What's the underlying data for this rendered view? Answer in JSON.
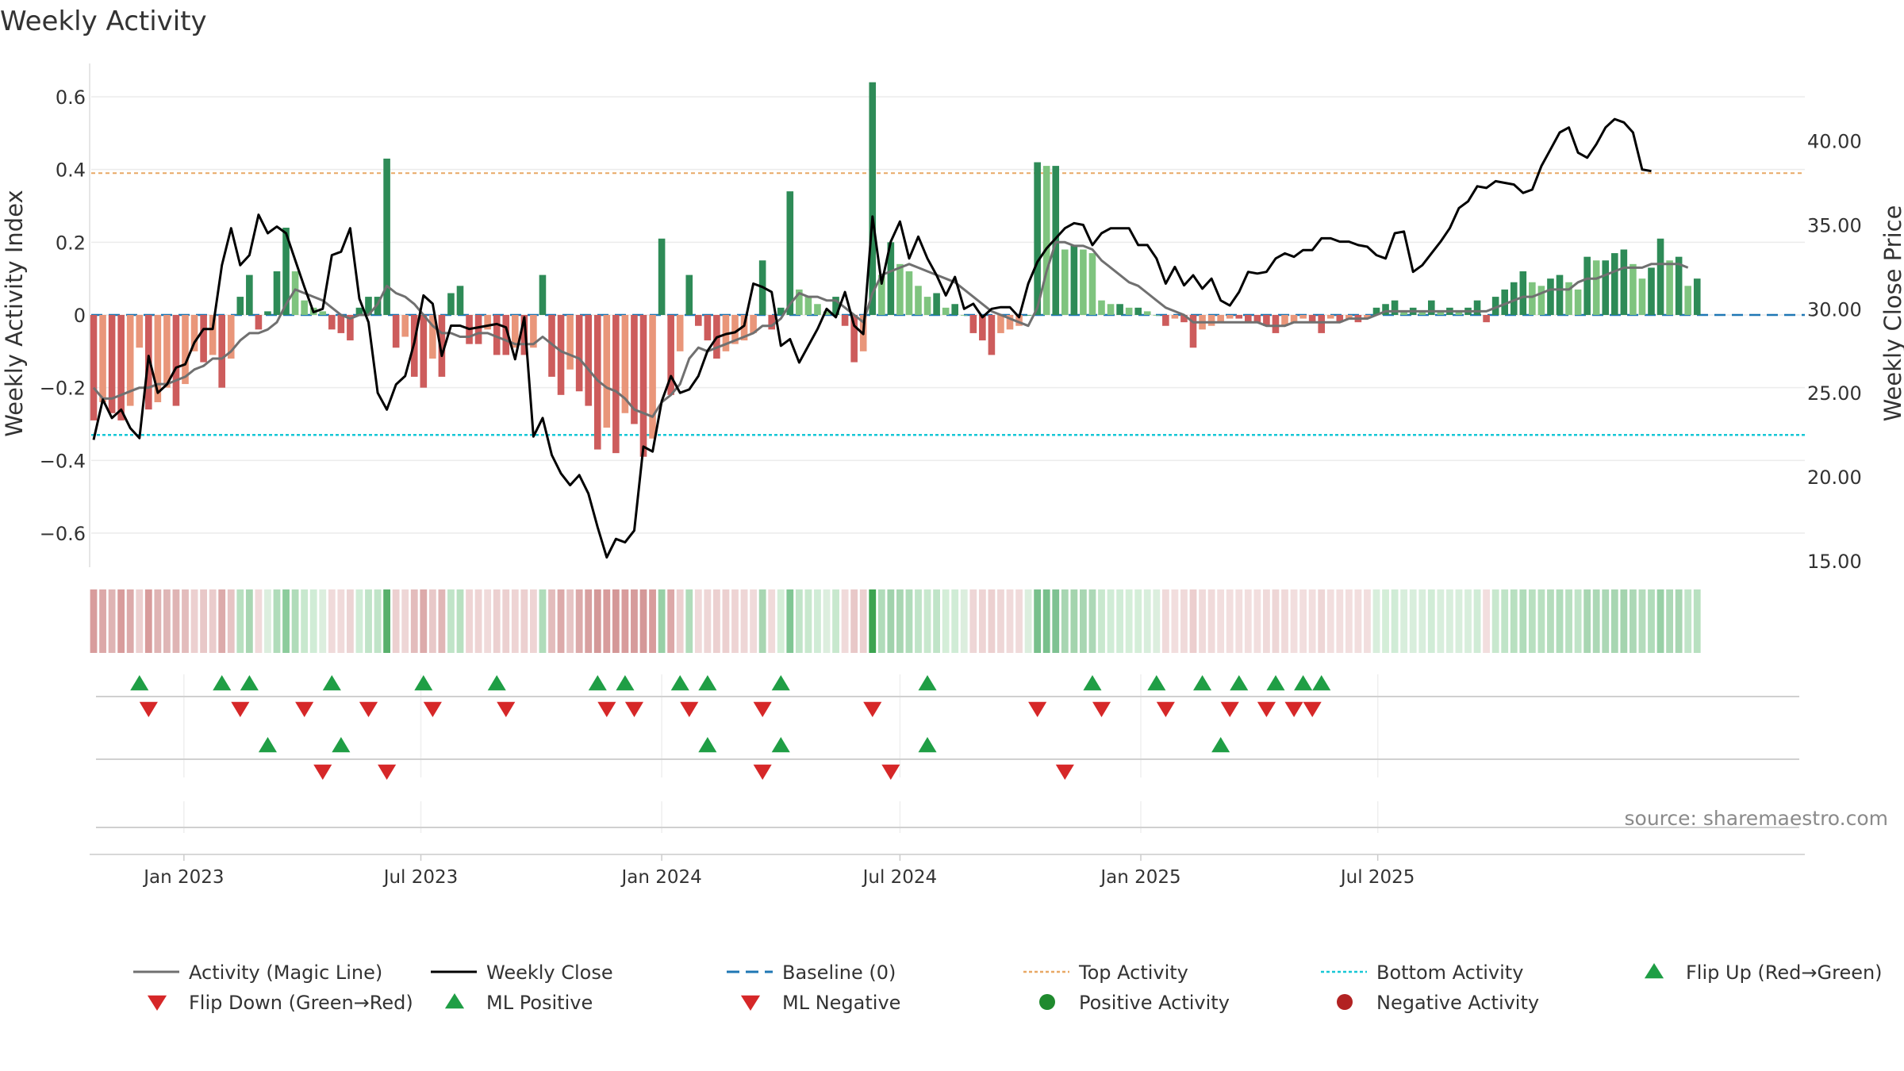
{
  "chart_data": {
    "type": "bar",
    "title": "Weekly Activity",
    "ylabel": "Weekly Activity Index",
    "y2label": "Weekly Close Price",
    "source": "source: sharemaestro.com",
    "ylim": [
      -0.7,
      0.7
    ],
    "y2lim": [
      12.8,
      44.0
    ],
    "yticks": [
      {
        "v": 0.6,
        "label": "0.6"
      },
      {
        "v": 0.4,
        "label": "0.4"
      },
      {
        "v": 0.2,
        "label": "0.2"
      },
      {
        "v": 0,
        "label": "0"
      },
      {
        "v": -0.2,
        "label": "−0.2"
      },
      {
        "v": -0.4,
        "label": "−0.4"
      },
      {
        "v": -0.6,
        "label": "−0.6"
      }
    ],
    "y2ticks": [
      {
        "v": 40,
        "label": "40.00"
      },
      {
        "v": 35,
        "label": "35.00"
      },
      {
        "v": 30,
        "label": "30.00"
      },
      {
        "v": 25,
        "label": "25.00"
      },
      {
        "v": 20,
        "label": "20.00"
      },
      {
        "v": 15,
        "label": "15.00"
      }
    ],
    "xticks": [
      {
        "date": "2023-01-01",
        "label": "Jan 2023"
      },
      {
        "date": "2023-07-01",
        "label": "Jul 2023"
      },
      {
        "date": "2024-01-01",
        "label": "Jan 2024"
      },
      {
        "date": "2024-07-01",
        "label": "Jul 2024"
      },
      {
        "date": "2025-01-01",
        "label": "Jan 2025"
      },
      {
        "date": "2025-07-01",
        "label": "Jul 2025"
      }
    ],
    "start_date": "2022-10-24",
    "top_activity": 0.39,
    "bottom_activity": -0.33,
    "activity": [
      -0.29,
      -0.24,
      -0.27,
      -0.29,
      -0.25,
      -0.09,
      -0.26,
      -0.24,
      -0.2,
      -0.25,
      -0.19,
      -0.1,
      -0.13,
      -0.11,
      -0.2,
      -0.12,
      0.05,
      0.11,
      -0.04,
      0.01,
      0.12,
      0.24,
      0.12,
      0.04,
      0.02,
      0.01,
      -0.04,
      -0.05,
      -0.07,
      0.02,
      0.05,
      0.05,
      0.43,
      -0.09,
      -0.06,
      -0.17,
      -0.2,
      -0.12,
      -0.17,
      0.06,
      0.08,
      -0.08,
      -0.08,
      -0.04,
      -0.11,
      -0.11,
      -0.09,
      -0.11,
      -0.09,
      0.11,
      -0.17,
      -0.22,
      -0.15,
      -0.21,
      -0.25,
      -0.37,
      -0.31,
      -0.38,
      -0.27,
      -0.3,
      -0.39,
      -0.34,
      0.21,
      -0.22,
      -0.1,
      0.11,
      -0.03,
      -0.07,
      -0.12,
      -0.1,
      -0.08,
      -0.07,
      -0.05,
      0.15,
      -0.04,
      0.02,
      0.34,
      0.07,
      0.05,
      0.03,
      0.01,
      0.05,
      -0.03,
      -0.13,
      -0.1,
      0.64,
      0.11,
      0.2,
      0.14,
      0.12,
      0.08,
      0.05,
      0.06,
      0.02,
      0.03,
      0.0,
      -0.05,
      -0.07,
      -0.11,
      -0.05,
      -0.04,
      -0.03,
      0.0,
      0.42,
      0.41,
      0.41,
      0.18,
      0.19,
      0.18,
      0.17,
      0.04,
      0.03,
      0.03,
      0.02,
      0.02,
      0.01,
      0.0,
      -0.03,
      -0.01,
      -0.02,
      -0.09,
      -0.04,
      -0.03,
      -0.02,
      -0.01,
      -0.01,
      -0.02,
      -0.02,
      -0.03,
      -0.05,
      -0.03,
      -0.02,
      -0.01,
      -0.02,
      -0.05,
      -0.01,
      -0.02,
      -0.01,
      -0.02,
      -0.01,
      0.02,
      0.03,
      0.04,
      0.01,
      0.02,
      0.01,
      0.04,
      0.01,
      0.02,
      0.01,
      0.02,
      0.04,
      -0.02,
      0.05,
      0.07,
      0.09,
      0.12,
      0.09,
      0.08,
      0.1,
      0.11,
      0.09,
      0.07,
      0.16,
      0.15,
      0.15,
      0.17,
      0.18,
      0.14,
      0.1,
      0.13,
      0.21,
      0.15,
      0.16,
      0.08,
      0.1
    ],
    "magic_line": [
      -0.2,
      -0.23,
      -0.23,
      -0.22,
      -0.21,
      -0.2,
      -0.2,
      -0.19,
      -0.19,
      -0.18,
      -0.17,
      -0.15,
      -0.14,
      -0.12,
      -0.12,
      -0.1,
      -0.07,
      -0.05,
      -0.05,
      -0.04,
      -0.02,
      0.03,
      0.07,
      0.06,
      0.05,
      0.04,
      0.02,
      0.0,
      -0.01,
      0.0,
      0.0,
      0.03,
      0.08,
      0.06,
      0.05,
      0.03,
      0.0,
      -0.03,
      -0.05,
      -0.05,
      -0.06,
      -0.06,
      -0.05,
      -0.05,
      -0.06,
      -0.07,
      -0.08,
      -0.08,
      -0.08,
      -0.06,
      -0.08,
      -0.1,
      -0.11,
      -0.12,
      -0.15,
      -0.18,
      -0.2,
      -0.21,
      -0.23,
      -0.26,
      -0.27,
      -0.28,
      -0.24,
      -0.22,
      -0.19,
      -0.12,
      -0.09,
      -0.1,
      -0.09,
      -0.08,
      -0.07,
      -0.06,
      -0.05,
      -0.03,
      -0.03,
      -0.01,
      0.03,
      0.06,
      0.05,
      0.05,
      0.04,
      0.04,
      0.02,
      0.0,
      -0.02,
      0.06,
      0.11,
      0.12,
      0.13,
      0.14,
      0.13,
      0.12,
      0.11,
      0.1,
      0.09,
      0.07,
      0.05,
      0.03,
      0.01,
      0.0,
      -0.01,
      -0.02,
      -0.03,
      0.02,
      0.12,
      0.2,
      0.2,
      0.19,
      0.19,
      0.18,
      0.15,
      0.13,
      0.11,
      0.09,
      0.08,
      0.06,
      0.04,
      0.02,
      0.01,
      0.0,
      -0.02,
      -0.02,
      -0.02,
      -0.02,
      -0.02,
      -0.02,
      -0.02,
      -0.02,
      -0.03,
      -0.03,
      -0.03,
      -0.02,
      -0.02,
      -0.02,
      -0.02,
      -0.02,
      -0.02,
      -0.01,
      -0.01,
      -0.01,
      0.0,
      0.01,
      0.01,
      0.01,
      0.01,
      0.01,
      0.01,
      0.01,
      0.01,
      0.01,
      0.01,
      0.01,
      0.01,
      0.02,
      0.03,
      0.04,
      0.05,
      0.05,
      0.06,
      0.07,
      0.07,
      0.07,
      0.09,
      0.1,
      0.1,
      0.11,
      0.12,
      0.13,
      0.13,
      0.13,
      0.14,
      0.14,
      0.14,
      0.14,
      0.13
    ],
    "weekly_close": [
      22.2,
      24.6,
      23.5,
      24.0,
      22.9,
      22.3,
      27.2,
      25.0,
      25.5,
      26.5,
      26.7,
      28.0,
      28.8,
      28.8,
      32.6,
      34.8,
      32.6,
      33.2,
      35.6,
      34.5,
      34.9,
      34.5,
      32.9,
      31.3,
      29.8,
      30.0,
      33.2,
      33.4,
      34.8,
      30.6,
      29.2,
      25.0,
      24.0,
      25.5,
      26.0,
      28.0,
      30.8,
      30.3,
      27.2,
      29.0,
      29.0,
      28.8,
      28.9,
      29.0,
      29.1,
      28.9,
      27.0,
      29.5,
      22.4,
      23.5,
      21.3,
      20.2,
      19.5,
      20.1,
      19.0,
      17.0,
      15.2,
      16.3,
      16.1,
      16.8,
      21.8,
      21.5,
      24.5,
      26.0,
      25.0,
      25.2,
      26.0,
      27.5,
      28.3,
      28.5,
      28.6,
      29.0,
      31.5,
      31.3,
      31.0,
      27.8,
      28.2,
      26.8,
      27.8,
      28.8,
      30.0,
      29.5,
      31.0,
      29.0,
      28.5,
      35.5,
      31.5,
      34.0,
      35.2,
      33.0,
      34.3,
      33.0,
      32.0,
      30.8,
      31.9,
      30.0,
      30.3,
      29.5,
      30.0,
      30.1,
      30.1,
      29.5,
      31.5,
      32.8,
      33.6,
      34.2,
      34.8,
      35.1,
      35.0,
      33.8,
      34.5,
      34.8,
      34.8,
      34.8,
      33.8,
      33.8,
      33.0,
      31.5,
      32.5,
      31.4,
      32.0,
      31.2,
      31.8,
      30.5,
      30.2,
      31.0,
      32.2,
      32.1,
      32.2,
      33.0,
      33.3,
      33.1,
      33.5,
      33.5,
      34.2,
      34.2,
      34.0,
      34.0,
      33.8,
      33.7,
      33.2,
      33.0,
      34.5,
      34.6,
      32.2,
      32.6,
      33.3,
      34.0,
      34.8,
      36.0,
      36.4,
      37.3,
      37.2,
      37.6,
      37.5,
      37.4,
      36.9,
      37.1,
      38.5,
      39.5,
      40.5,
      40.8,
      39.3,
      39.0,
      39.8,
      40.8,
      41.3,
      41.1,
      40.5,
      38.3,
      38.2
    ],
    "strip_colors": [
      "#d89c9c",
      "#dca8a8",
      "#dfb4b4",
      "#d89c9c",
      "#dcaaaa",
      "#ecd0d0",
      "#d89c9c",
      "#dfb4b4",
      "#dfb6b6",
      "#dfb4b4",
      "#e3bcbc",
      "#ecd0d0",
      "#e8c8c8",
      "#eacccc",
      "#dcaaaa",
      "#e6c4c4",
      "#b8e0c0",
      "#a8d6b2",
      "#f0dada",
      "#dceede",
      "#b0dcba",
      "#8ccc9c",
      "#b0dcba",
      "#c8e8ce",
      "#d0ecd6",
      "#dceede",
      "#f0dada",
      "#f0dada",
      "#ecd4d4",
      "#d0ecd6",
      "#c0e4c8",
      "#c0e4c8",
      "#58b06c",
      "#ecd0d0",
      "#eed6d6",
      "#e3bcbc",
      "#dcaaaa",
      "#e8c8c8",
      "#e0b6b6",
      "#c0e4c8",
      "#b8e0c0",
      "#eed4d4",
      "#eed4d4",
      "#f0dada",
      "#ecd0d0",
      "#ecd0d0",
      "#eed4d4",
      "#ecd0d0",
      "#eed4d4",
      "#b0dcba",
      "#e3bcbc",
      "#dcaaaa",
      "#e6c4c4",
      "#dcaaaa",
      "#d8a0a0",
      "#d49898",
      "#d89c9c",
      "#d49898",
      "#d89c9c",
      "#d69c9c",
      "#d49898",
      "#d89c9c",
      "#98d0a6",
      "#dca8a8",
      "#ecd0d0",
      "#b0dcba",
      "#f0dada",
      "#eed6d6",
      "#ecd0d0",
      "#ecd0d0",
      "#eed4d4",
      "#eed6d6",
      "#f0dada",
      "#a8d6b2",
      "#f0dada",
      "#d4eed8",
      "#80c694",
      "#c0e4c8",
      "#c8e8ce",
      "#d0ecd6",
      "#dceede",
      "#c8e8ce",
      "#f0dada",
      "#e8c8c8",
      "#ecd0d0",
      "#3ca450",
      "#b0dcba",
      "#a0d2ac",
      "#a8d6b2",
      "#b0dcba",
      "#c0e4c8",
      "#c8e8ce",
      "#c0e4c8",
      "#d4eed8",
      "#d0ecd6",
      "#dceede",
      "#eed6d6",
      "#eed4d4",
      "#ecd0d0",
      "#eed6d6",
      "#f0dada",
      "#f0dada",
      "#dceede",
      "#78c08c",
      "#78c08c",
      "#7ec292",
      "#a8d6b2",
      "#a4d4ae",
      "#a8d6b2",
      "#acd8b6",
      "#c8e8ce",
      "#d0ecd6",
      "#d0ecd6",
      "#d4eed8",
      "#d4eed8",
      "#d8eedc",
      "#dceede",
      "#f0dada",
      "#f2dede",
      "#f0dada",
      "#eccece",
      "#f0dada",
      "#f0dada",
      "#f2dede",
      "#f2dede",
      "#f2dede",
      "#f2dede",
      "#f2dede",
      "#f0dada",
      "#eed6d6",
      "#f0dada",
      "#f2dede",
      "#f2dede",
      "#f2dede",
      "#eed6d6",
      "#f2dede",
      "#f2dede",
      "#f2dede",
      "#f2dede",
      "#f2dede",
      "#d8eedc",
      "#d4eed8",
      "#d0ecd6",
      "#d8eedc",
      "#d8eedc",
      "#d8eedc",
      "#d0ecd6",
      "#d8eedc",
      "#d8eedc",
      "#d8eedc",
      "#d8eedc",
      "#d0ecd6",
      "#f2dede",
      "#c8e8ce",
      "#c0e4c8",
      "#b8e0c0",
      "#b0dcba",
      "#b8e0c0",
      "#b8e0c0",
      "#b4dcbc",
      "#b0dcba",
      "#b8e0c0",
      "#c0e4c8",
      "#a8d6b2",
      "#acd8b6",
      "#acd8b6",
      "#a8d6b2",
      "#a4d4ae",
      "#acd8b6",
      "#b4dcbc",
      "#b0dcba",
      "#98d0a6",
      "#acd8b6",
      "#a8d6b2",
      "#c0e4c8",
      "#b8e0c0"
    ],
    "flip_up": [
      5,
      14,
      17,
      26,
      36,
      44,
      55,
      58,
      64,
      67,
      75,
      91,
      109,
      116,
      121,
      125,
      129,
      132,
      134
    ],
    "flip_down": [
      6,
      16,
      23,
      30,
      37,
      45,
      56,
      59,
      65,
      73,
      85,
      103,
      110,
      117,
      124,
      128,
      131,
      133
    ],
    "ml_positive": [
      19,
      27,
      67,
      75,
      91,
      123
    ],
    "ml_negative": [
      25,
      32,
      73,
      87,
      106
    ],
    "legend": [
      {
        "label": "Activity (Magic Line)",
        "type": "line",
        "color": "#707070"
      },
      {
        "label": "Weekly Close",
        "type": "line",
        "color": "#000000"
      },
      {
        "label": "Baseline (0)",
        "type": "dash",
        "color": "#1f77b4"
      },
      {
        "label": "Top Activity",
        "type": "dot",
        "color": "#e8a865"
      },
      {
        "label": "Bottom Activity",
        "type": "dot",
        "color": "#17c7d6"
      },
      {
        "label": "Flip Up (Red→Green)",
        "type": "tri-up",
        "color": "#1f9e45"
      },
      {
        "label": "Flip Down (Green→Red)",
        "type": "tri-down",
        "color": "#d62728"
      },
      {
        "label": "ML Positive",
        "type": "tri-up",
        "color": "#1f9e45"
      },
      {
        "label": "ML Negative",
        "type": "tri-down",
        "color": "#d62728"
      },
      {
        "label": "Positive Activity",
        "type": "circle",
        "color": "#1f8a2e"
      },
      {
        "label": "Negative Activity",
        "type": "circle",
        "color": "#b22222"
      }
    ],
    "colors": {
      "pos_strong": "#2e8b57",
      "pos_weak": "#7fc47f",
      "neg_strong": "#cd5c5c",
      "neg_weak": "#e9967a",
      "magic_line": "#707070",
      "close": "#000000",
      "baseline": "#1f77b4",
      "top": "#e8a865",
      "bottom": "#17c7d6",
      "tri_up": "#1f9e45",
      "tri_down": "#d62728"
    }
  }
}
